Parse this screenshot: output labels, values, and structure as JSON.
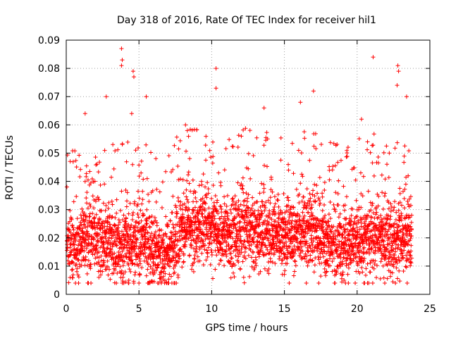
{
  "chart_data": {
    "type": "scatter",
    "title": "Day 318 of 2016, Rate Of TEC Index for receiver hil1",
    "xlabel": "GPS time / hours",
    "ylabel": "ROTI / TECUs",
    "xlim": [
      0,
      25
    ],
    "ylim": [
      0,
      0.09
    ],
    "x_ticks": [
      "0",
      "5",
      "10",
      "15",
      "20",
      "25"
    ],
    "y_ticks": [
      "0",
      "0.01",
      "0.02",
      "0.03",
      "0.04",
      "0.05",
      "0.06",
      "0.07",
      "0.08",
      "0.09"
    ],
    "grid": true,
    "marker": "+",
    "color": "#ff0000",
    "series": [
      {
        "name": "ROTI",
        "sample_interval_hours": 0.02,
        "hour_range": [
          0.05,
          23.75
        ],
        "baseline_profile": [
          {
            "x": 0,
            "y": 0.016
          },
          {
            "x": 1,
            "y": 0.02
          },
          {
            "x": 2,
            "y": 0.021
          },
          {
            "x": 3,
            "y": 0.018
          },
          {
            "x": 4,
            "y": 0.017
          },
          {
            "x": 5,
            "y": 0.018
          },
          {
            "x": 6,
            "y": 0.015
          },
          {
            "x": 7,
            "y": 0.014
          },
          {
            "x": 8,
            "y": 0.022
          },
          {
            "x": 9,
            "y": 0.024
          },
          {
            "x": 10,
            "y": 0.023
          },
          {
            "x": 11,
            "y": 0.021
          },
          {
            "x": 12,
            "y": 0.022
          },
          {
            "x": 13,
            "y": 0.023
          },
          {
            "x": 14,
            "y": 0.02
          },
          {
            "x": 15,
            "y": 0.02
          },
          {
            "x": 16,
            "y": 0.022
          },
          {
            "x": 17,
            "y": 0.022
          },
          {
            "x": 18,
            "y": 0.017
          },
          {
            "x": 19,
            "y": 0.016
          },
          {
            "x": 20,
            "y": 0.018
          },
          {
            "x": 21,
            "y": 0.02
          },
          {
            "x": 22,
            "y": 0.019
          },
          {
            "x": 23,
            "y": 0.02
          },
          {
            "x": 24,
            "y": 0.02
          }
        ],
        "notable_points": [
          {
            "x": 3.8,
            "y": 0.087
          },
          {
            "x": 3.85,
            "y": 0.083
          },
          {
            "x": 3.8,
            "y": 0.081
          },
          {
            "x": 4.6,
            "y": 0.079
          },
          {
            "x": 4.65,
            "y": 0.077
          },
          {
            "x": 10.3,
            "y": 0.08
          },
          {
            "x": 10.3,
            "y": 0.073
          },
          {
            "x": 21.1,
            "y": 0.084
          },
          {
            "x": 22.8,
            "y": 0.081
          },
          {
            "x": 22.85,
            "y": 0.079
          },
          {
            "x": 22.75,
            "y": 0.074
          },
          {
            "x": 17.0,
            "y": 0.072
          },
          {
            "x": 5.5,
            "y": 0.07
          },
          {
            "x": 2.75,
            "y": 0.07
          },
          {
            "x": 23.4,
            "y": 0.07
          },
          {
            "x": 1.3,
            "y": 0.064
          },
          {
            "x": 4.5,
            "y": 0.064
          },
          {
            "x": 8.2,
            "y": 0.06
          },
          {
            "x": 16.1,
            "y": 0.068
          },
          {
            "x": 20.3,
            "y": 0.062
          },
          {
            "x": 13.6,
            "y": 0.066
          },
          {
            "x": 3.9,
            "y": 0.006
          },
          {
            "x": 7.0,
            "y": 0.004
          },
          {
            "x": 21.9,
            "y": 0.004
          },
          {
            "x": 4.3,
            "y": 0.005
          },
          {
            "x": 12.2,
            "y": 0.006
          },
          {
            "x": 19.1,
            "y": 0.005
          }
        ]
      }
    ]
  }
}
